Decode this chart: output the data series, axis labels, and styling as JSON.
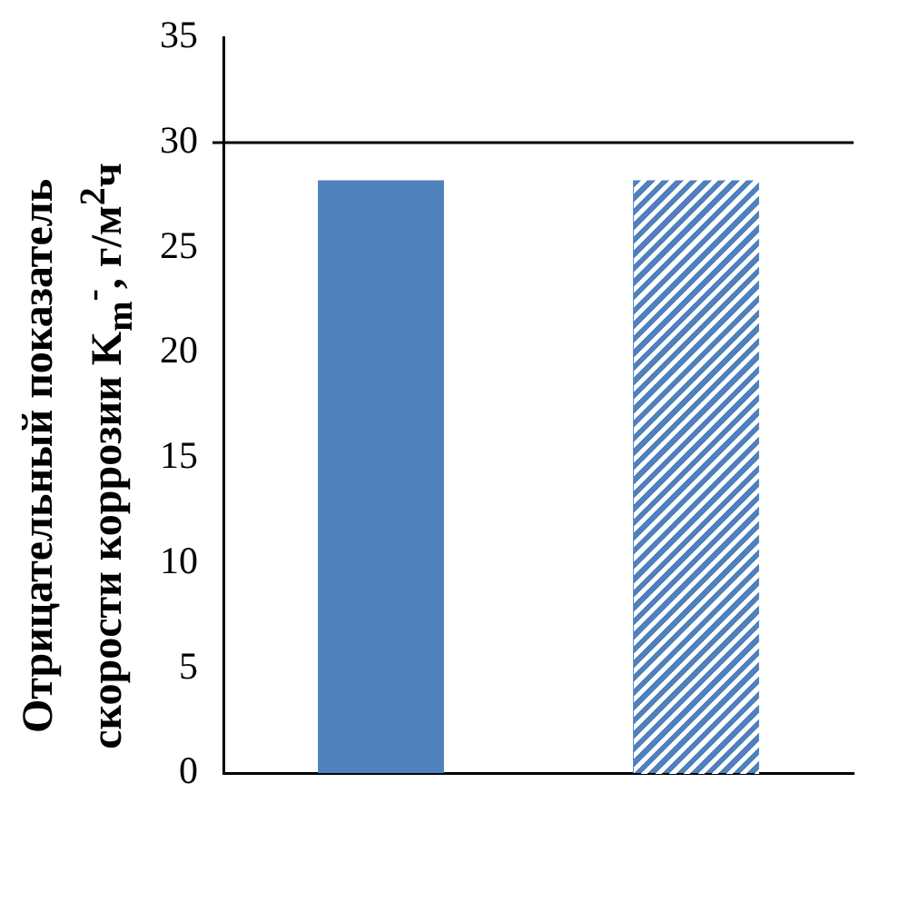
{
  "chart_data": {
    "type": "bar",
    "ylabel": "Отрицательный показатель\nскорости коррозии K$_{m}$$^{-}$, г/м$^{2}$ч",
    "categories": [
      null,
      null
    ],
    "values": [
      28.2,
      28.2
    ],
    "colors": [
      "#4f81bd",
      "#4f81bd"
    ],
    "ylim": [
      0,
      35
    ],
    "yticks": [
      0,
      5,
      10,
      15,
      20,
      25,
      30,
      35
    ],
    "grid": false,
    "ref_lines": [
      {
        "axis": "y",
        "value": 30,
        "color": "#000000"
      }
    ],
    "legend": false
  }
}
